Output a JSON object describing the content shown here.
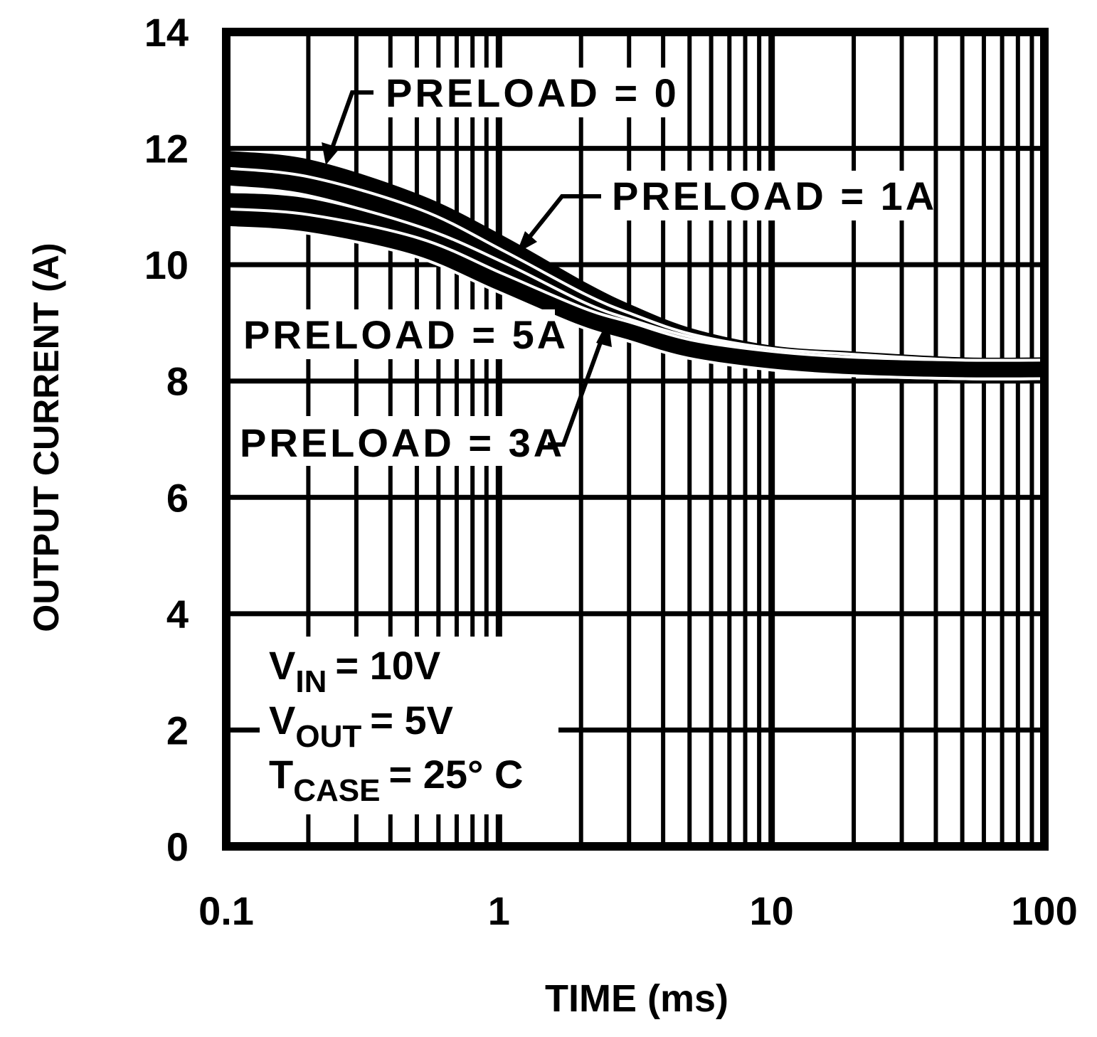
{
  "chart_data": {
    "type": "line",
    "title": "",
    "xlabel": "TIME (ms)",
    "ylabel": "OUTPUT CURRENT (A)",
    "xscale": "log",
    "xlim": [
      0.1,
      100
    ],
    "ylim": [
      0,
      14
    ],
    "grid": true,
    "x_tick_labels": [
      "0.1",
      "1",
      "10",
      "100"
    ],
    "y_tick_labels": [
      "0",
      "2",
      "4",
      "6",
      "8",
      "10",
      "12",
      "14"
    ],
    "x": [
      0.1,
      0.2,
      0.5,
      1,
      2,
      3,
      5,
      10,
      20,
      50,
      100
    ],
    "series": [
      {
        "name": "PRELOAD = 0",
        "values": [
          11.75,
          11.6,
          11.0,
          10.3,
          9.5,
          9.1,
          8.7,
          8.4,
          8.3,
          8.2,
          8.2
        ]
      },
      {
        "name": "PRELOAD = 1A",
        "values": [
          11.5,
          11.35,
          10.8,
          10.1,
          9.35,
          9.0,
          8.65,
          8.4,
          8.3,
          8.2,
          8.2
        ]
      },
      {
        "name": "PRELOAD = 3A",
        "values": [
          11.1,
          11.0,
          10.5,
          9.9,
          9.2,
          8.9,
          8.6,
          8.35,
          8.25,
          8.2,
          8.2
        ]
      },
      {
        "name": "PRELOAD = 5A",
        "values": [
          10.8,
          10.7,
          10.3,
          9.7,
          9.1,
          8.85,
          8.55,
          8.35,
          8.25,
          8.2,
          8.2
        ]
      }
    ],
    "conditions": [
      {
        "main": "V",
        "sub": "IN",
        "rest": "= 10V"
      },
      {
        "main": "V",
        "sub": "OUT",
        "rest": "= 5V"
      },
      {
        "main": "T",
        "sub": "CASE",
        "rest": "= 25° C"
      }
    ],
    "colors": {
      "line": "#000000",
      "background": "#ffffff"
    }
  }
}
